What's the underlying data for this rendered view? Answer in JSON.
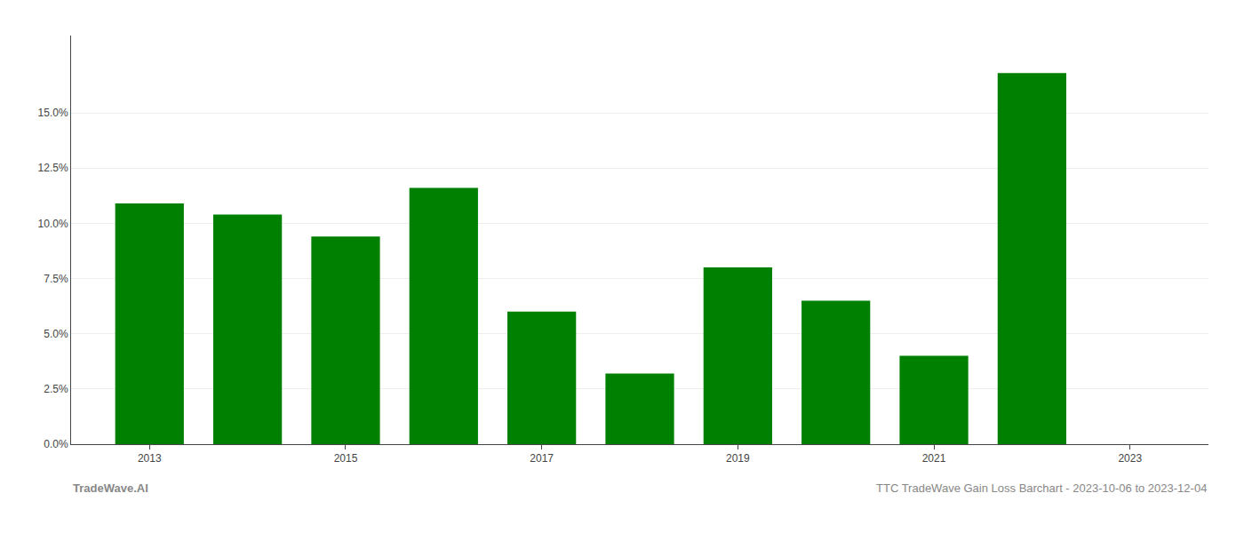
{
  "chart_data": {
    "type": "bar",
    "x": [
      2013,
      2014,
      2015,
      2016,
      2017,
      2018,
      2019,
      2020,
      2021,
      2022
    ],
    "values": [
      0.109,
      0.104,
      0.094,
      0.116,
      0.06,
      0.032,
      0.08,
      0.065,
      0.04,
      0.168
    ],
    "color": "#008000",
    "xlim": [
      2012.2,
      2023.8
    ],
    "xticks": [
      2013,
      2015,
      2017,
      2019,
      2021,
      2023
    ],
    "ylim": [
      0.0,
      0.185
    ],
    "yticks": [
      {
        "value": 0.0,
        "label": "0.0%"
      },
      {
        "value": 0.025,
        "label": "2.5%"
      },
      {
        "value": 0.05,
        "label": "5.0%"
      },
      {
        "value": 0.075,
        "label": "7.5%"
      },
      {
        "value": 0.1,
        "label": "10.0%"
      },
      {
        "value": 0.125,
        "label": "12.5%"
      },
      {
        "value": 0.15,
        "label": "15.0%"
      }
    ],
    "grid": true,
    "annotations": [
      "TradeWave.AI",
      "TTC TradeWave Gain Loss Barchart - 2023-10-06 to 2023-12-04"
    ]
  }
}
